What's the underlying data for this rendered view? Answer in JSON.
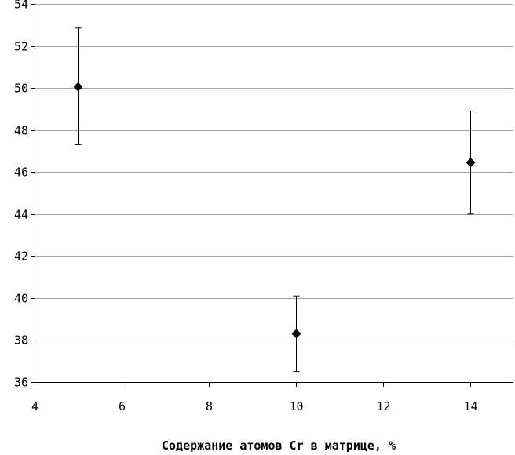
{
  "chart_data": {
    "type": "scatter",
    "title": "",
    "xlabel": "Содержание атомов Cr в матрице, %",
    "ylabel": "",
    "xlim": [
      4,
      15
    ],
    "ylim": [
      36,
      54
    ],
    "x_ticks": [
      4,
      6,
      8,
      10,
      12,
      14
    ],
    "y_ticks": [
      36,
      38,
      40,
      42,
      44,
      46,
      48,
      50,
      52,
      54
    ],
    "grid": "horizontal",
    "marker": "diamond",
    "marker_color": "#000000",
    "points": [
      {
        "x": 5,
        "y": 50.05,
        "err_low": 47.3,
        "err_high": 52.85
      },
      {
        "x": 10,
        "y": 38.3,
        "err_low": 36.5,
        "err_high": 40.1
      },
      {
        "x": 14,
        "y": 46.45,
        "err_low": 44.0,
        "err_high": 48.9
      }
    ]
  }
}
